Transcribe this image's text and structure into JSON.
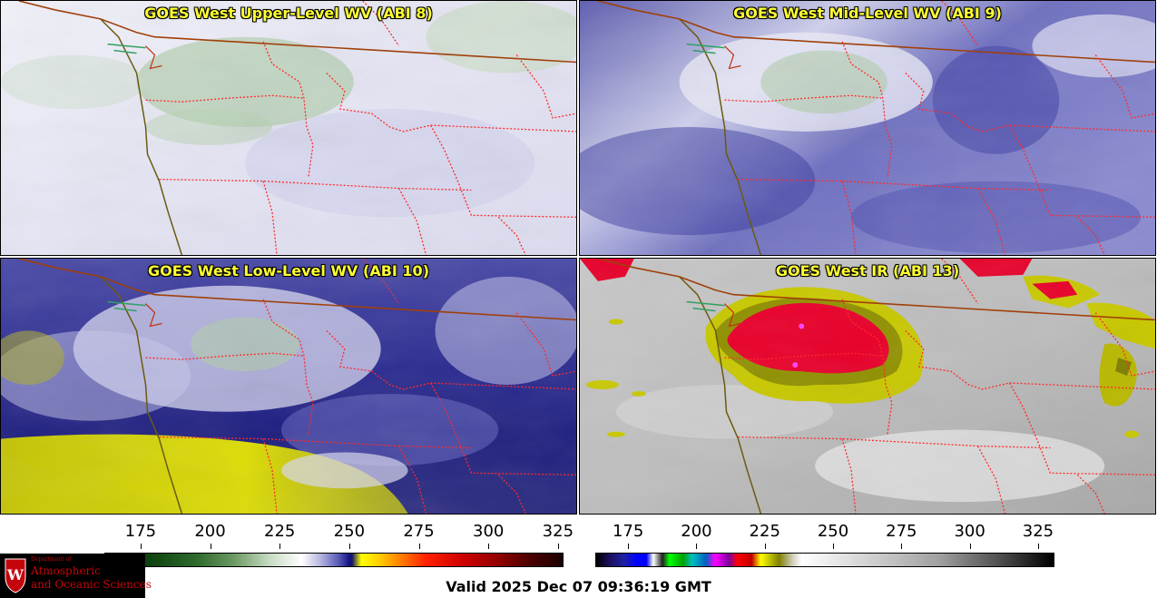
{
  "panels": [
    {
      "id": "upper",
      "title": "GOES West Upper-Level WV (ABI 8)"
    },
    {
      "id": "mid",
      "title": "GOES West Mid-Level WV (ABI 9)"
    },
    {
      "id": "low",
      "title": "GOES West Low-Level WV (ABI 10)"
    },
    {
      "id": "ir",
      "title": "GOES West IR (ABI 13)"
    }
  ],
  "colorbars": {
    "left": {
      "ticks": [
        "175",
        "200",
        "225",
        "250",
        "275",
        "300",
        "325"
      ],
      "range": [
        162,
        327
      ]
    },
    "right": {
      "ticks": [
        "175",
        "200",
        "225",
        "250",
        "275",
        "300",
        "325"
      ],
      "range": [
        163,
        331
      ]
    }
  },
  "logo": {
    "line1": "Department of",
    "line2": "Atmospheric",
    "line3": "and Oceanic Sciences",
    "crest_letter": "W"
  },
  "valid_time": "Valid 2025 Dec 07 09:36:19 GMT",
  "colors": {
    "title": "#ffff33",
    "state_lines": "#ff2a2a",
    "border_line": "#a0400a",
    "coastline": "#6b5a10",
    "logo_red": "#c5050c"
  }
}
